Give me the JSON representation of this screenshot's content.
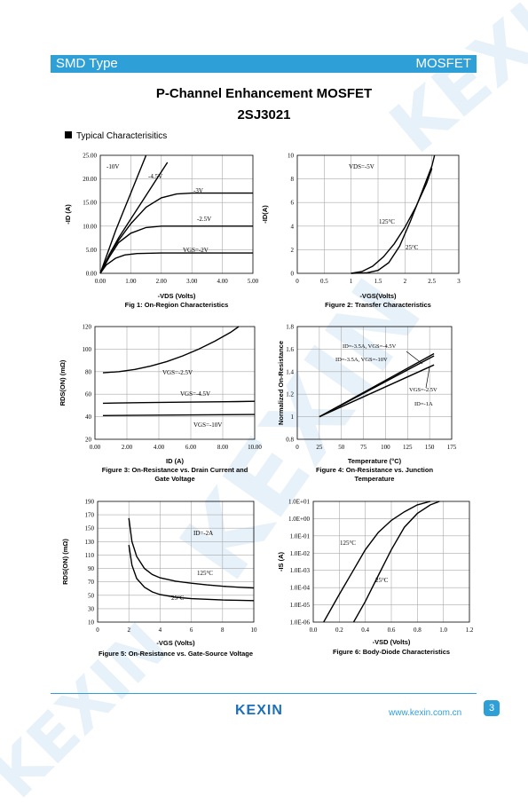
{
  "header": {
    "left": "SMD Type",
    "right": "MOSFET"
  },
  "watermark": "KEXIN",
  "title": "P-Channel Enhancement MOSFET",
  "part": "2SJ3021",
  "section": "Typical  Characterisitics",
  "footer": {
    "logo": "KEXIN",
    "url": "www.kexin.com.cn",
    "page": "3"
  },
  "chart_data": [
    {
      "type": "line",
      "caption": "Fig 1: On-Region Characteristics",
      "xlabel": "-VDS (Volts)",
      "ylabel": "-ID (A)",
      "xlim": [
        0,
        5
      ],
      "ylim": [
        0,
        25
      ],
      "xticks": [
        "0.00",
        "1.00",
        "2.00",
        "3.00",
        "4.00",
        "5.00"
      ],
      "yticks": [
        "0.00",
        "5.00",
        "10.00",
        "15.00",
        "20.00",
        "25.00"
      ],
      "series": [
        {
          "name": "-10V",
          "x": [
            0,
            0.25,
            0.5,
            0.75,
            1.0,
            1.25,
            1.5
          ],
          "y": [
            0,
            4.5,
            9,
            13,
            17,
            21,
            25
          ]
        },
        {
          "name": "-4.5V",
          "x": [
            0,
            0.3,
            0.6,
            1.0,
            1.4,
            1.8,
            2.2
          ],
          "y": [
            0,
            4,
            7.5,
            11.5,
            15.5,
            19.5,
            23.5
          ]
        },
        {
          "name": "-3V",
          "x": [
            0,
            0.3,
            0.6,
            1.0,
            1.5,
            2.0,
            2.5,
            3.0,
            4.0,
            5.0
          ],
          "y": [
            0,
            4,
            7,
            10.5,
            14,
            16,
            16.8,
            17,
            17,
            17
          ]
        },
        {
          "name": "-2.5V",
          "x": [
            0,
            0.3,
            0.6,
            1.0,
            1.5,
            2.0,
            3.0,
            4.0,
            5.0
          ],
          "y": [
            0,
            3.5,
            6.5,
            8.5,
            9.7,
            10,
            10,
            10,
            10
          ]
        },
        {
          "name": "VGS=-2V",
          "x": [
            0,
            0.2,
            0.5,
            0.8,
            1.2,
            2.0,
            3.0,
            4.0,
            5.0
          ],
          "y": [
            0,
            1.8,
            3.2,
            3.9,
            4.2,
            4.3,
            4.3,
            4.3,
            4.3
          ]
        }
      ]
    },
    {
      "type": "line",
      "caption": "Figure 2: Transfer Characteristics",
      "xlabel": "-VGS(Volts)",
      "ylabel": "-ID(A)",
      "xlim": [
        0,
        3
      ],
      "ylim": [
        0,
        10
      ],
      "xticks": [
        "0",
        "0.5",
        "1",
        "1.5",
        "2",
        "2.5",
        "3"
      ],
      "yticks": [
        "0",
        "2",
        "4",
        "6",
        "8",
        "10"
      ],
      "annotation": "VDS=-5V",
      "series": [
        {
          "name": "125°C",
          "x": [
            1.0,
            1.2,
            1.4,
            1.6,
            1.8,
            2.0,
            2.2,
            2.4,
            2.5
          ],
          "y": [
            0,
            0.15,
            0.6,
            1.4,
            2.5,
            3.9,
            5.6,
            7.6,
            8.9
          ]
        },
        {
          "name": "25°C",
          "x": [
            1.0,
            1.3,
            1.5,
            1.7,
            1.9,
            2.1,
            2.3,
            2.5,
            2.55
          ],
          "y": [
            0,
            0.05,
            0.25,
            0.9,
            2.3,
            4.4,
            6.7,
            9.1,
            10
          ]
        }
      ]
    },
    {
      "type": "line",
      "caption": "Figure 3: On-Resistance vs. Drain Current and Gate Voltage",
      "xlabel": "ID (A)",
      "ylabel": "RDS(ON) (mΩ)",
      "xlim": [
        0,
        10
      ],
      "ylim": [
        20,
        120
      ],
      "xticks": [
        "0.00",
        "2.00",
        "4.00",
        "6.00",
        "8.00",
        "10.00"
      ],
      "yticks": [
        "20",
        "40",
        "60",
        "80",
        "100",
        "120"
      ],
      "series": [
        {
          "name": "VGS=-2.5V",
          "x": [
            0.5,
            1.5,
            2.5,
            3.5,
            4.5,
            5.5,
            6.5,
            7.5,
            8.5,
            9.0
          ],
          "y": [
            79,
            80,
            82,
            85,
            89,
            94,
            100,
            107,
            115,
            120
          ]
        },
        {
          "name": "VGS=-4.5V",
          "x": [
            0.5,
            3.0,
            6.0,
            9.0,
            10.0
          ],
          "y": [
            52,
            52.5,
            53,
            53.5,
            53.7
          ]
        },
        {
          "name": "VGS=-10V",
          "x": [
            0.5,
            3.0,
            6.0,
            9.0,
            10.0
          ],
          "y": [
            41,
            41.3,
            41.6,
            41.9,
            42
          ]
        }
      ]
    },
    {
      "type": "line",
      "caption": "Figure 4: On-Resistance vs. Junction Temperature",
      "xlabel": "Temperature (°C)",
      "ylabel": "Normalized On-Resistance",
      "xlim": [
        0,
        175
      ],
      "ylim": [
        0.8,
        1.8
      ],
      "xticks": [
        "0",
        "25",
        "50",
        "75",
        "100",
        "125",
        "150",
        "175"
      ],
      "yticks": [
        "0.8",
        "1",
        "1.2",
        "1.4",
        "1.6",
        "1.8"
      ],
      "annotations": [
        "ID=-3.5A, VGS=-4.5V",
        "ID=-3.5A, VGS=-10V",
        "VGS=-2.5V",
        "ID=-1A"
      ],
      "series": [
        {
          "name": "ID=-3.5A, VGS=-4.5V",
          "x": [
            25,
            155
          ],
          "y": [
            1.0,
            1.56
          ]
        },
        {
          "name": "ID=-3.5A, VGS=-10V",
          "x": [
            25,
            155
          ],
          "y": [
            1.0,
            1.54
          ]
        },
        {
          "name": "VGS=-2.5V ID=-1A",
          "x": [
            25,
            155
          ],
          "y": [
            1.0,
            1.46
          ]
        }
      ]
    },
    {
      "type": "line",
      "caption": "Figure 5: On-Resistance vs. Gate-Source Voltage",
      "xlabel": "-VGS (Volts)",
      "ylabel": "RDS(ON) (mΩ)",
      "xlim": [
        0,
        10
      ],
      "ylim": [
        10,
        190
      ],
      "xticks": [
        "0",
        "2",
        "4",
        "6",
        "8",
        "10"
      ],
      "yticks": [
        "10",
        "30",
        "50",
        "70",
        "90",
        "110",
        "130",
        "150",
        "170",
        "190"
      ],
      "annotation": "ID=-2A",
      "series": [
        {
          "name": "125°C",
          "x": [
            2.0,
            2.2,
            2.5,
            3.0,
            3.5,
            4.0,
            5.0,
            6.0,
            7.0,
            8.0,
            9.0,
            10.0
          ],
          "y": [
            165,
            130,
            108,
            90,
            81,
            76,
            71,
            68,
            65.5,
            63.5,
            62,
            61
          ]
        },
        {
          "name": "25°C",
          "x": [
            2.0,
            2.2,
            2.5,
            3.0,
            3.5,
            4.0,
            5.0,
            6.0,
            7.0,
            8.0,
            9.0,
            10.0
          ],
          "y": [
            125,
            95,
            75,
            62,
            55,
            51,
            47,
            45,
            44,
            43,
            42.5,
            42
          ]
        }
      ]
    },
    {
      "type": "line",
      "caption": "Figure 6: Body-Diode Characteristics",
      "xlabel": "-VSD (Volts)",
      "ylabel": "-IS (A)",
      "xlim": [
        0,
        1.2
      ],
      "ylim": [
        -6,
        1
      ],
      "yscale": "log",
      "xticks": [
        "0.0",
        "0.2",
        "0.4",
        "0.6",
        "0.8",
        "1.0",
        "1.2"
      ],
      "yticks": [
        "1.0E-06",
        "1.0E-05",
        "1.0E-04",
        "1.0E-03",
        "1.0E-02",
        "1.0E-01",
        "1.0E+00",
        "1.0E+01"
      ],
      "series": [
        {
          "name": "125°C",
          "x": [
            0.08,
            0.2,
            0.3,
            0.4,
            0.5,
            0.6,
            0.7,
            0.8,
            0.9
          ],
          "y": [
            -6,
            -4.4,
            -3.1,
            -1.8,
            -0.8,
            -0.1,
            0.4,
            0.8,
            1.0
          ]
        },
        {
          "name": "25°C",
          "x": [
            0.31,
            0.4,
            0.5,
            0.6,
            0.7,
            0.8,
            0.9,
            0.97
          ],
          "y": [
            -6,
            -4.8,
            -3.3,
            -1.8,
            -0.5,
            0.3,
            0.8,
            1.0
          ]
        }
      ]
    }
  ]
}
